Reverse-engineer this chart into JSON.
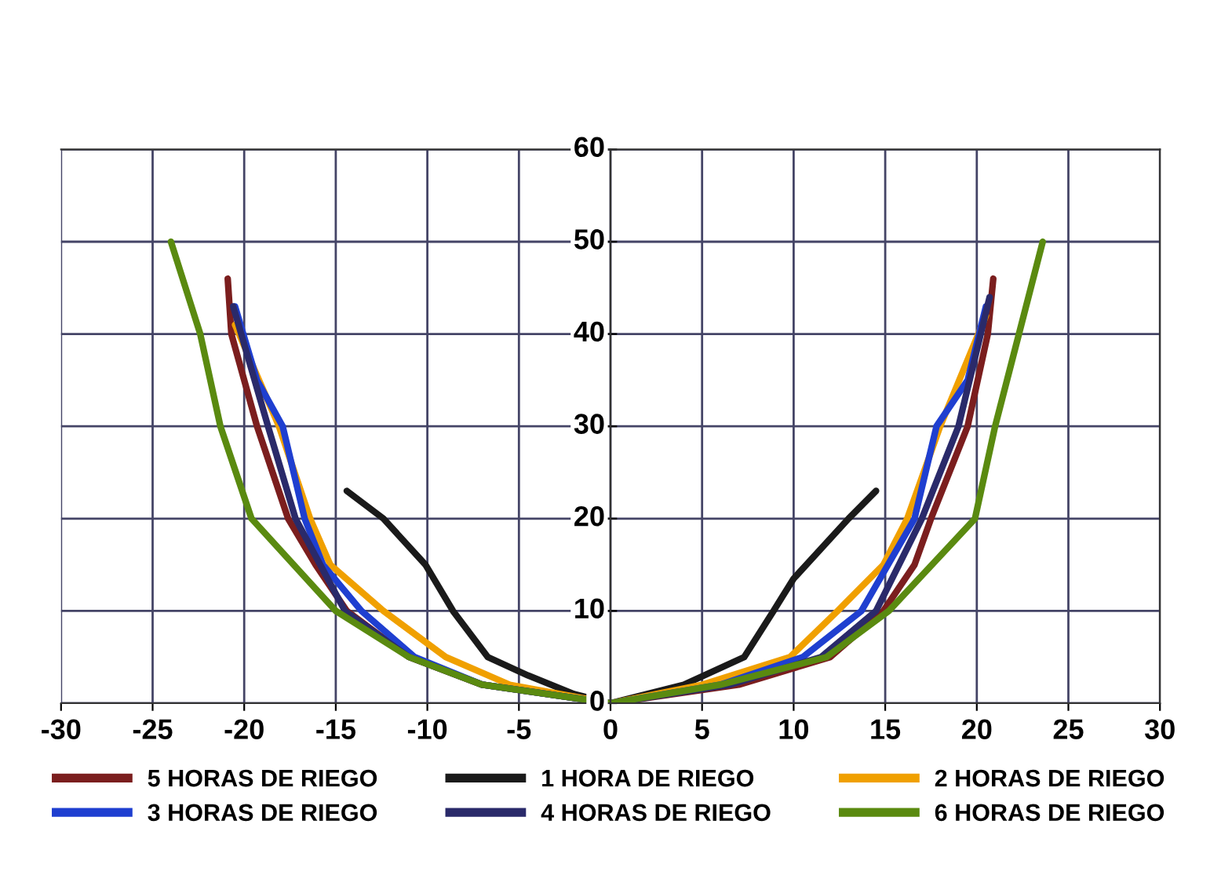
{
  "chart_data": {
    "type": "line",
    "xlim": [
      -30,
      30
    ],
    "ylim": [
      0,
      60
    ],
    "xticks": [
      -30,
      -25,
      -20,
      -15,
      -10,
      -5,
      0,
      5,
      10,
      15,
      20,
      25,
      30
    ],
    "yticks": [
      0,
      10,
      20,
      30,
      40,
      50,
      60
    ],
    "grid": true,
    "legend": "bottom",
    "marker": "none",
    "line_style": "solid",
    "series": [
      {
        "name": "5 HORAS DE RIEGO",
        "color": "#7b1e1e",
        "x": [
          -20.9,
          -20.7,
          -19.3,
          -17.6,
          -16.1,
          -14.4,
          -11,
          -7,
          0,
          7,
          12,
          14.9,
          16.6,
          17.5,
          19.5,
          20.6,
          20.9
        ],
        "values": [
          46,
          40,
          30,
          20,
          15,
          10,
          5,
          2,
          0,
          2,
          5,
          10,
          15,
          20,
          30,
          40,
          46
        ]
      },
      {
        "name": "1 HORA DE RIEGO",
        "color": "#1a1a1a",
        "x": [
          -14.4,
          -12.4,
          -10.1,
          -8.6,
          -6.7,
          -4.5,
          -2,
          0,
          2,
          4,
          7.3,
          8.9,
          10,
          13,
          14.5
        ],
        "values": [
          23,
          20,
          15,
          10,
          5,
          3,
          1,
          0,
          1,
          2,
          5,
          10,
          13.5,
          20,
          23
        ]
      },
      {
        "name": "2 HORAS DE RIEGO",
        "color": "#f0a000",
        "x": [
          -20.5,
          -18.1,
          -16.4,
          -15.3,
          -12.4,
          -9,
          -5.5,
          0,
          5,
          9.8,
          12.4,
          14.9,
          16.2,
          18,
          20.5
        ],
        "values": [
          41,
          30,
          20,
          15,
          10,
          5,
          2,
          0,
          2,
          5,
          10,
          15,
          20,
          30,
          42
        ]
      },
      {
        "name": "3 HORAS DE RIEGO",
        "color": "#1f3fd0",
        "x": [
          -20.5,
          -19.3,
          -17.9,
          -16.7,
          -15.7,
          -13.6,
          -10.7,
          -7,
          0,
          6,
          10.5,
          13.7,
          16.6,
          17.8,
          19.5,
          20.5
        ],
        "values": [
          43,
          35,
          30,
          20,
          15,
          10,
          5,
          2,
          0,
          2,
          5,
          10,
          20,
          30,
          35,
          43
        ]
      },
      {
        "name": "4 HORAS DE RIEGO",
        "color": "#2a2a6a",
        "x": [
          -20.6,
          -18.7,
          -17.2,
          -14.5,
          -11,
          -7,
          0,
          6.5,
          11.5,
          14.5,
          17,
          19,
          20.7
        ],
        "values": [
          43,
          30,
          20,
          10,
          5,
          2,
          0,
          2,
          5,
          10,
          20,
          30,
          44
        ]
      },
      {
        "name": "6 HORAS DE RIEGO",
        "color": "#5a8a10",
        "x": [
          -24,
          -22.4,
          -21.3,
          -19.6,
          -15,
          -11,
          -7,
          0,
          6,
          11.8,
          15.2,
          19.9,
          21,
          22.3,
          23.6
        ],
        "values": [
          50,
          40,
          30,
          20,
          10,
          5,
          2,
          0,
          2,
          5,
          10,
          20,
          30,
          40,
          50
        ]
      }
    ]
  }
}
